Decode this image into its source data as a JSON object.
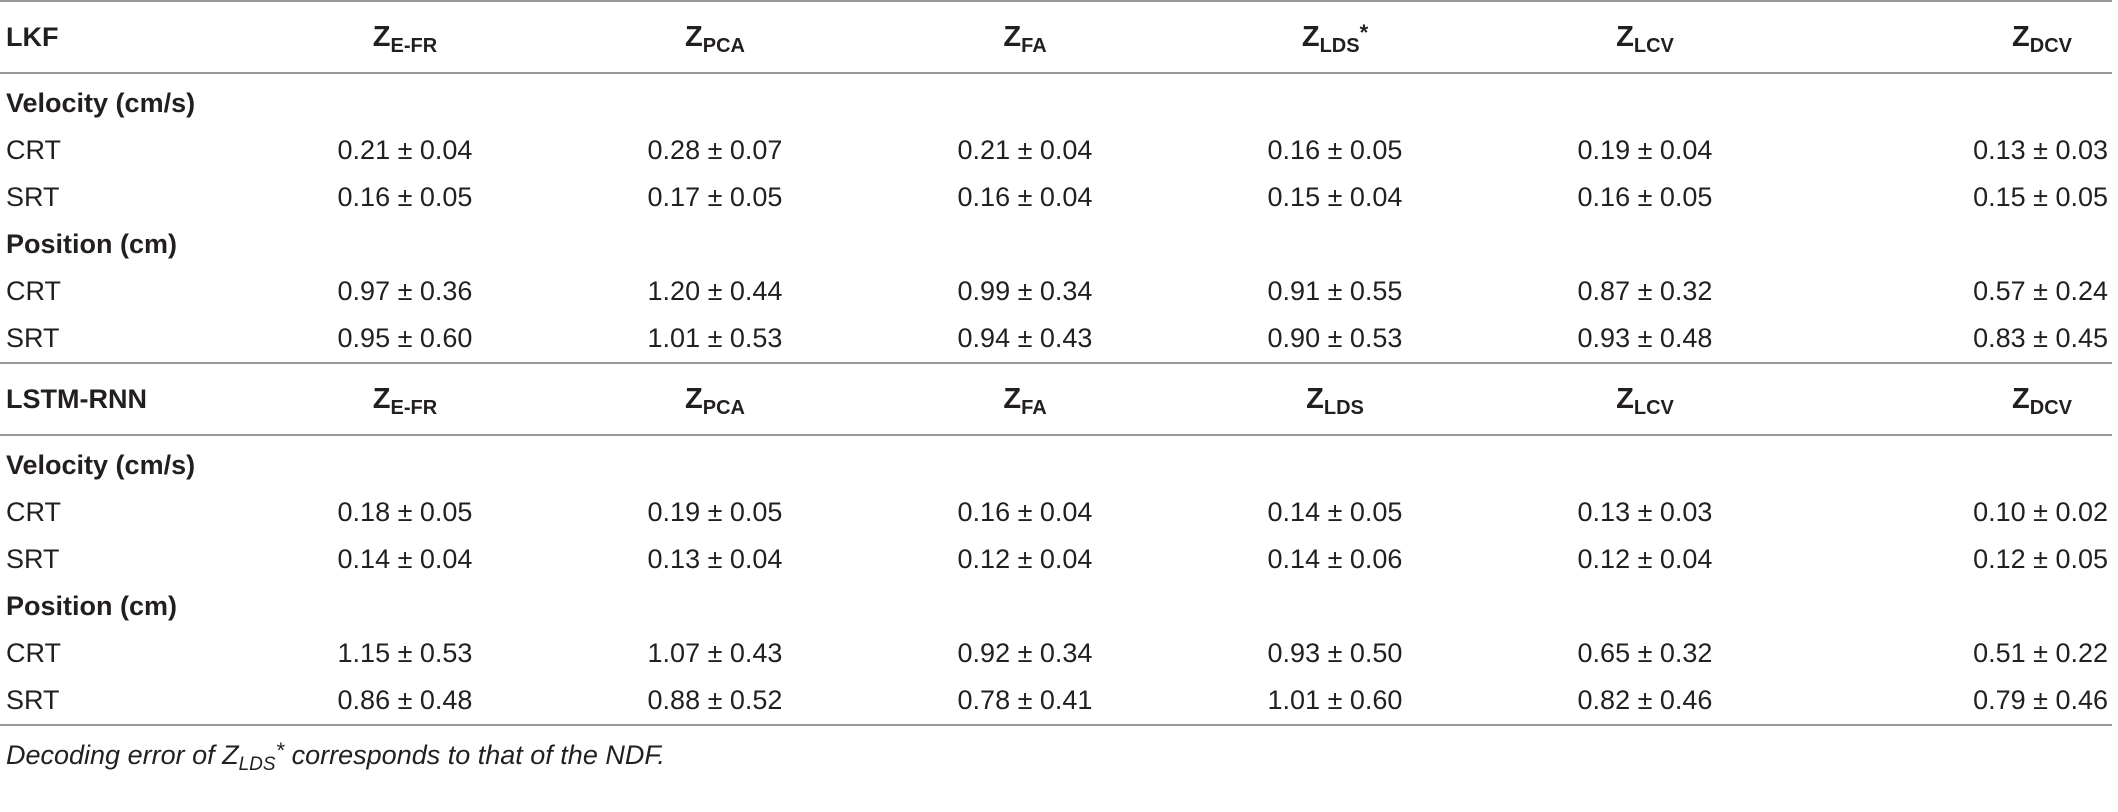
{
  "symbols": {
    "z": "Z",
    "star": "*",
    "pm": "±"
  },
  "blocks": [
    {
      "model": "LKF",
      "columns": [
        {
          "sub": "E-FR",
          "star": false
        },
        {
          "sub": "PCA",
          "star": false
        },
        {
          "sub": "FA",
          "star": false
        },
        {
          "sub": "LDS",
          "star": true
        },
        {
          "sub": "LCV",
          "star": false
        },
        {
          "sub": "DCV",
          "star": false
        }
      ],
      "sections": [
        {
          "title": "Velocity (cm/s)",
          "rows": [
            {
              "label": "CRT",
              "values": [
                "0.21 ± 0.04",
                "0.28 ± 0.07",
                "0.21 ± 0.04",
                "0.16 ± 0.05",
                "0.19 ± 0.04",
                "0.13 ± 0.03"
              ]
            },
            {
              "label": "SRT",
              "values": [
                "0.16 ± 0.05",
                "0.17 ± 0.05",
                "0.16 ± 0.04",
                "0.15 ± 0.04",
                "0.16 ± 0.05",
                "0.15 ± 0.05"
              ]
            }
          ]
        },
        {
          "title": "Position (cm)",
          "rows": [
            {
              "label": "CRT",
              "values": [
                "0.97 ± 0.36",
                "1.20 ± 0.44",
                "0.99 ± 0.34",
                "0.91 ± 0.55",
                "0.87 ± 0.32",
                "0.57 ± 0.24"
              ]
            },
            {
              "label": "SRT",
              "values": [
                "0.95 ± 0.60",
                "1.01 ± 0.53",
                "0.94 ± 0.43",
                "0.90 ± 0.53",
                "0.93 ± 0.48",
                "0.83 ± 0.45"
              ]
            }
          ]
        }
      ]
    },
    {
      "model": "LSTM-RNN",
      "columns": [
        {
          "sub": "E-FR",
          "star": false
        },
        {
          "sub": "PCA",
          "star": false
        },
        {
          "sub": "FA",
          "star": false
        },
        {
          "sub": "LDS",
          "star": false
        },
        {
          "sub": "LCV",
          "star": false
        },
        {
          "sub": "DCV",
          "star": false
        }
      ],
      "sections": [
        {
          "title": "Velocity (cm/s)",
          "rows": [
            {
              "label": "CRT",
              "values": [
                "0.18 ± 0.05",
                "0.19 ± 0.05",
                "0.16 ± 0.04",
                "0.14 ± 0.05",
                "0.13 ± 0.03",
                "0.10 ± 0.02"
              ]
            },
            {
              "label": "SRT",
              "values": [
                "0.14 ± 0.04",
                "0.13 ± 0.04",
                "0.12 ± 0.04",
                "0.14 ± 0.06",
                "0.12 ± 0.04",
                "0.12 ± 0.05"
              ]
            }
          ]
        },
        {
          "title": "Position (cm)",
          "rows": [
            {
              "label": "CRT",
              "values": [
                "1.15 ± 0.53",
                "1.07 ± 0.43",
                "0.92 ± 0.34",
                "0.93 ± 0.50",
                "0.65 ± 0.32",
                "0.51 ± 0.22"
              ]
            },
            {
              "label": "SRT",
              "values": [
                "0.86 ± 0.48",
                "0.88 ± 0.52",
                "0.78 ± 0.41",
                "1.01 ± 0.60",
                "0.82 ± 0.46",
                "0.79 ± 0.46"
              ]
            }
          ]
        }
      ]
    }
  ],
  "footnote": {
    "prefix": "Decoding error of ",
    "z": "Z",
    "sub": "LDS",
    "star": "*",
    "suffix": " corresponds to that of the NDF."
  }
}
